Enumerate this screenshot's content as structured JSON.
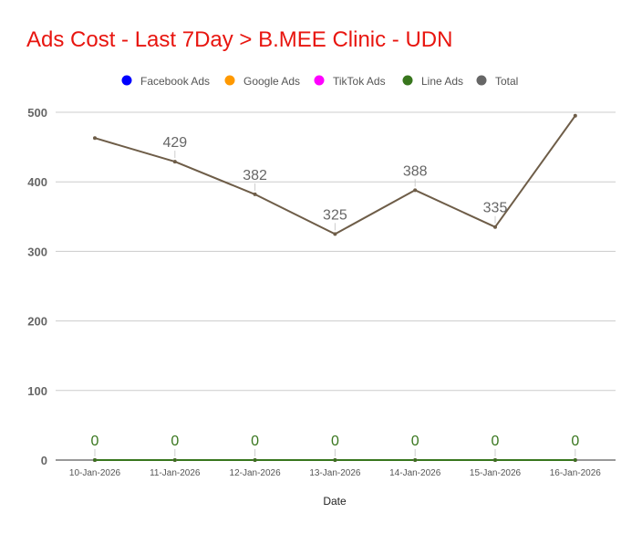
{
  "chart_data": {
    "type": "line",
    "title": "Ads Cost - Last 7Day > B.MEE Clinic - UDN",
    "xlabel": "Date",
    "ylabel": "",
    "categories": [
      "10-Jan-2026",
      "11-Jan-2026",
      "12-Jan-2026",
      "13-Jan-2026",
      "14-Jan-2026",
      "15-Jan-2026",
      "16-Jan-2026"
    ],
    "ylim": [
      0,
      500
    ],
    "yticks": [
      0,
      100,
      200,
      300,
      400,
      500
    ],
    "grid": true,
    "legend_position": "top",
    "series": [
      {
        "name": "Facebook Ads",
        "color": "#0000ff",
        "values": [
          0,
          0,
          0,
          0,
          0,
          0,
          0
        ]
      },
      {
        "name": "Google Ads",
        "color": "#ff9900",
        "values": [
          0,
          0,
          0,
          0,
          0,
          0,
          0
        ]
      },
      {
        "name": "TikTok Ads",
        "color": "#ff00ff",
        "values": [
          0,
          0,
          0,
          0,
          0,
          0,
          0
        ]
      },
      {
        "name": "Line Ads",
        "color": "#38761d",
        "values": [
          0,
          0,
          0,
          0,
          0,
          0,
          0
        ],
        "data_labels": [
          "0",
          "0",
          "0",
          "0",
          "0",
          "0",
          "0"
        ]
      },
      {
        "name": "Total",
        "color": "#666666",
        "line_color": "#6e5d48",
        "values": [
          463,
          429,
          382,
          325,
          388,
          335,
          495
        ],
        "data_labels": [
          null,
          "429",
          "382",
          "325",
          "388",
          "335",
          null
        ]
      }
    ]
  }
}
